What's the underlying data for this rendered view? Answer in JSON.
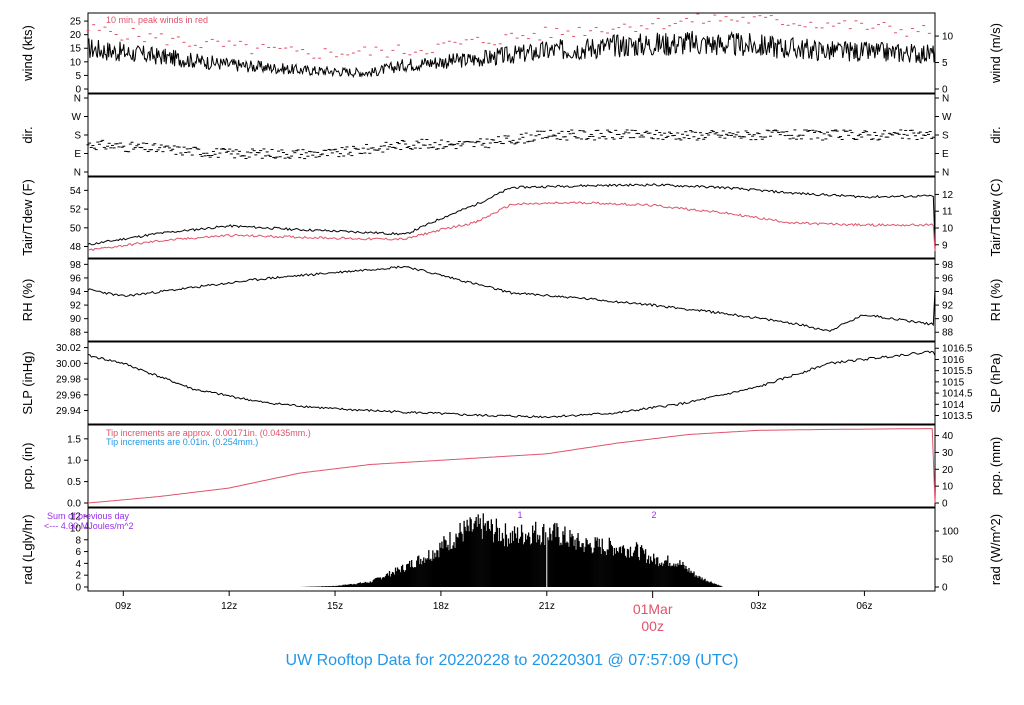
{
  "title": "UW Rooftop Data for 20220228  to  20220301 @ 07:57:09  (UTC)",
  "colors": {
    "series_black": "#000000",
    "series_red": "#df536b",
    "series_blue": "#2297e6",
    "purple": "#9a2eeb",
    "title_blue": "#2297e6"
  },
  "time_axis": {
    "ticks": [
      "09z",
      "12z",
      "15z",
      "18z",
      "21z",
      "03z",
      "06z"
    ],
    "day_label": "01Mar",
    "day_sub": "00z"
  },
  "panels": [
    {
      "id": "wind",
      "left_label": "wind (kts)",
      "right_label": "wind (m/s)",
      "left_ticks": [
        "0",
        "5",
        "10",
        "15",
        "20",
        "25"
      ],
      "right_ticks": [
        "0",
        "5",
        "10"
      ],
      "note": "10 min. peak winds in red"
    },
    {
      "id": "dir",
      "left_label": "dir.",
      "right_label": "dir.",
      "left_ticks": [
        "N",
        "E",
        "S",
        "W",
        "N"
      ],
      "right_ticks": [
        "N",
        "E",
        "S",
        "W",
        "N"
      ]
    },
    {
      "id": "temp",
      "left_label": "Tair/Tdew (F)",
      "right_label": "Tair/Tdew (C)",
      "left_ticks": [
        "48",
        "50",
        "52",
        "54"
      ],
      "right_ticks": [
        "9",
        "10",
        "11",
        "12"
      ]
    },
    {
      "id": "rh",
      "left_label": "RH (%)",
      "right_label": "RH (%)",
      "left_ticks": [
        "88",
        "90",
        "92",
        "94",
        "96",
        "98"
      ],
      "right_ticks": [
        "88",
        "90",
        "92",
        "94",
        "96",
        "98"
      ]
    },
    {
      "id": "slp",
      "left_label": "SLP (inHg)",
      "right_label": "SLP (hPa)",
      "left_ticks": [
        "29.94",
        "29.96",
        "29.98",
        "30.00",
        "30.02"
      ],
      "right_ticks": [
        "1013.5",
        "1014",
        "1014.5",
        "1015",
        "1015.5",
        "1016",
        "1016.5"
      ]
    },
    {
      "id": "pcp",
      "left_label": "pcp. (in)",
      "right_label": "pcp. (mm)",
      "left_ticks": [
        "0.0",
        "0.5",
        "1.0",
        "1.5"
      ],
      "right_ticks": [
        "0",
        "10",
        "20",
        "30",
        "40"
      ],
      "note1": "Tip increments are approx. 0.00171in. (0.0435mm.)",
      "note2": "Tip increments are 0.01in. (0.254mm.)"
    },
    {
      "id": "rad",
      "left_label": "rad (Lgly/hr)",
      "right_label": "rad (W/m^2)",
      "left_ticks": [
        "0",
        "2",
        "4",
        "6",
        "8",
        "10",
        "12"
      ],
      "right_ticks": [
        "0",
        "50",
        "100"
      ],
      "note1": "Sum of previous day",
      "note2": "<--- 4.00 MJoules/m^2",
      "markers": [
        "1",
        "2"
      ]
    }
  ],
  "chart_data": [
    {
      "type": "line",
      "title": "wind",
      "x_range_hours_utc": [
        "08z 28 Feb",
        "08z 01 Mar"
      ],
      "ylim": [
        0,
        28
      ],
      "series": [
        {
          "name": "wind (kts)",
          "x": [
            8,
            10,
            12,
            14,
            16,
            17,
            19,
            21,
            23,
            1,
            3,
            5,
            7.9
          ],
          "values": [
            15,
            12,
            9,
            7,
            6,
            9,
            11,
            14,
            16,
            17,
            16,
            14,
            13
          ]
        },
        {
          "name": "10 min. peak winds in red",
          "x": [
            8,
            11,
            14,
            17,
            20,
            23,
            2,
            5,
            7.9
          ],
          "values": [
            22,
            17,
            13,
            14,
            19,
            23,
            26,
            24,
            21
          ]
        }
      ]
    },
    {
      "type": "scatter",
      "title": "dir.",
      "series": [
        {
          "name": "dir.",
          "x": [
            8,
            12,
            15,
            17,
            19,
            21,
            0,
            4,
            7.9
          ],
          "values": [
            "SE",
            "E",
            "E",
            "SE",
            "SE",
            "S",
            "S",
            "S",
            "S"
          ]
        }
      ]
    },
    {
      "type": "line",
      "title": "Tair/Tdew",
      "ylim": [
        47.5,
        55
      ],
      "series": [
        {
          "name": "Tair (F)",
          "x": [
            8,
            10,
            12,
            14,
            16,
            17,
            18,
            19,
            20,
            22,
            0,
            2,
            4,
            6,
            7.9
          ],
          "values": [
            48.2,
            49.4,
            50.2,
            49.8,
            49.5,
            49.3,
            51,
            52.5,
            54.3,
            54.5,
            54.6,
            54.3,
            53.7,
            53.3,
            53.4
          ]
        },
        {
          "name": "Tdew (F)",
          "x": [
            8,
            10,
            12,
            14,
            16,
            17,
            18,
            19,
            20,
            22,
            0,
            2,
            4,
            6,
            7.9
          ],
          "values": [
            47.6,
            48.6,
            49.2,
            49.0,
            48.8,
            48.8,
            49.8,
            50.6,
            52.5,
            52.7,
            52.4,
            51.6,
            50.5,
            50.3,
            50.3
          ]
        }
      ]
    },
    {
      "type": "line",
      "title": "RH",
      "ylim": [
        87,
        98
      ],
      "series": [
        {
          "name": "RH (%)",
          "x": [
            8,
            9,
            11,
            13,
            15,
            17,
            18,
            20,
            22,
            0,
            2,
            4,
            5,
            6,
            7.9
          ],
          "values": [
            94.3,
            93.3,
            94.6,
            95.9,
            96.8,
            97.7,
            96.4,
            93.8,
            93.0,
            92.0,
            90.8,
            89.3,
            88.2,
            90.6,
            89.2
          ]
        }
      ]
    },
    {
      "type": "line",
      "title": "SLP",
      "ylim": [
        29.925,
        30.025
      ],
      "series": [
        {
          "name": "SLP (inHg)",
          "x": [
            8,
            9,
            11,
            13,
            15,
            17,
            19,
            21,
            23,
            1,
            3,
            5,
            7.9
          ],
          "values": [
            30.01,
            30.0,
            29.967,
            29.95,
            29.942,
            29.938,
            29.934,
            29.932,
            29.937,
            29.95,
            29.97,
            30.0,
            30.015
          ]
        }
      ]
    },
    {
      "type": "line",
      "title": "pcp.",
      "ylim": [
        0,
        1.8
      ],
      "series": [
        {
          "name": "pcp. (in)",
          "x": [
            8,
            10,
            12,
            14,
            16,
            17,
            19,
            21,
            23,
            1,
            3,
            5,
            7.9
          ],
          "values": [
            0.0,
            0.15,
            0.35,
            0.7,
            0.9,
            0.95,
            1.05,
            1.15,
            1.4,
            1.6,
            1.7,
            1.72,
            1.74
          ]
        }
      ]
    },
    {
      "type": "area",
      "title": "rad",
      "ylim": [
        0,
        13
      ],
      "series": [
        {
          "name": "rad (Lgly/hr)",
          "x": [
            14,
            15,
            16,
            17,
            17.8,
            18.6,
            19.2,
            20,
            20.6,
            21.3,
            22,
            22.8,
            23.5,
            0,
            0.7,
            1.3,
            2
          ],
          "values": [
            0,
            0.2,
            1.0,
            4.0,
            7.0,
            11.0,
            12.0,
            10.0,
            11.0,
            10.5,
            8.5,
            8.0,
            7.5,
            5.5,
            5.0,
            2.0,
            0
          ]
        }
      ]
    }
  ]
}
